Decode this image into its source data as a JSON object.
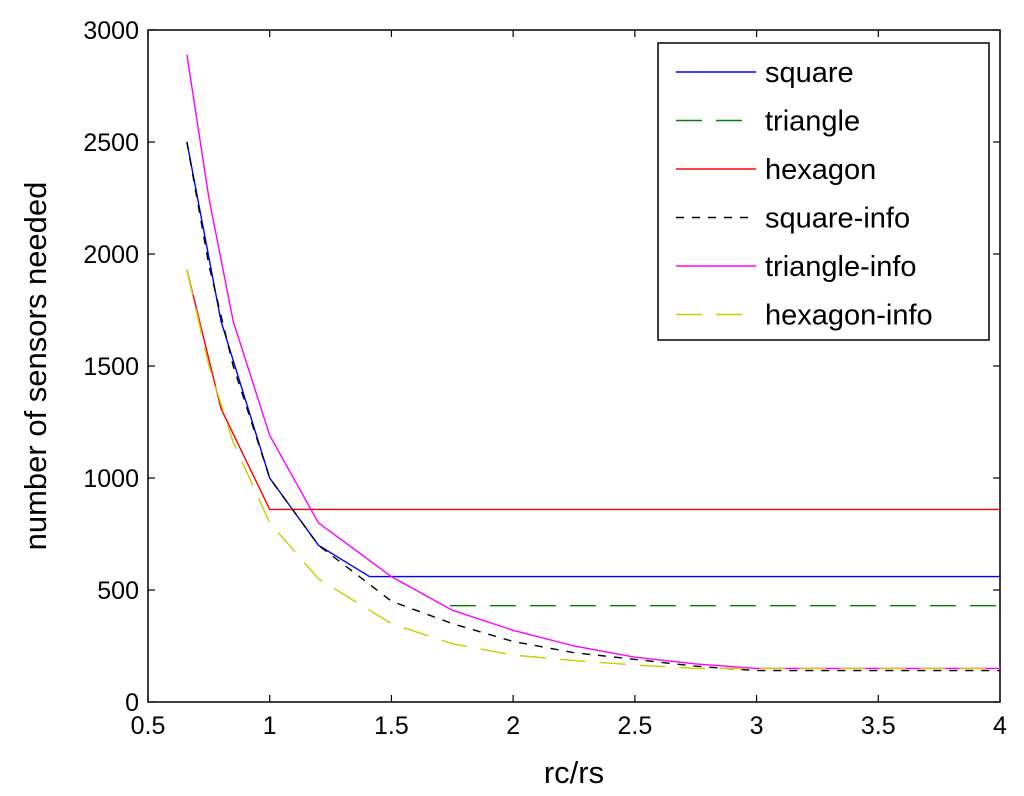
{
  "chart_data": {
    "type": "line",
    "title": "",
    "xlabel": "rc/rs",
    "ylabel": "number of sensors needed",
    "xlim": [
      0.5,
      4
    ],
    "ylim": [
      0,
      3000
    ],
    "xticks": [
      "0.5",
      "1",
      "1.5",
      "2",
      "2.5",
      "3",
      "3.5",
      "4"
    ],
    "yticks": [
      "0",
      "500",
      "1000",
      "1500",
      "2000",
      "2500",
      "3000"
    ],
    "grid": false,
    "legend_position": "top-right",
    "series": [
      {
        "name": "square",
        "color": "#0000ff",
        "style": "solid",
        "x": [
          0.66,
          0.8,
          1.0,
          1.2,
          1.41,
          4.0
        ],
        "y": [
          2500,
          1700,
          1000,
          700,
          560,
          560
        ]
      },
      {
        "name": "triangle",
        "color": "#008000",
        "style": "longdash",
        "x": [
          1.74,
          4.0
        ],
        "y": [
          430,
          430
        ]
      },
      {
        "name": "hexagon",
        "color": "#ff0000",
        "style": "solid",
        "x": [
          0.66,
          0.8,
          1.0,
          4.0
        ],
        "y": [
          1930,
          1310,
          860,
          860
        ]
      },
      {
        "name": "square-info",
        "color": "#000000",
        "style": "dashed",
        "x": [
          0.66,
          0.75,
          0.85,
          1.0,
          1.2,
          1.5,
          1.75,
          2.0,
          2.25,
          2.5,
          2.75,
          3.0,
          3.5,
          4.0
        ],
        "y": [
          2500,
          1950,
          1500,
          1000,
          700,
          450,
          350,
          270,
          220,
          190,
          160,
          140,
          140,
          140
        ]
      },
      {
        "name": "triangle-info",
        "color": "#ff00ff",
        "style": "solid",
        "x": [
          0.66,
          0.75,
          0.85,
          1.0,
          1.2,
          1.5,
          1.75,
          2.0,
          2.25,
          2.5,
          2.75,
          3.0,
          3.5,
          4.0
        ],
        "y": [
          2890,
          2250,
          1700,
          1190,
          800,
          560,
          410,
          320,
          250,
          200,
          170,
          150,
          150,
          150
        ]
      },
      {
        "name": "hexagon-info",
        "color": "#cccc00",
        "style": "longdash",
        "x": [
          0.66,
          0.75,
          0.85,
          1.0,
          1.2,
          1.5,
          1.75,
          2.0,
          2.25,
          2.5,
          2.75,
          3.0,
          3.5,
          4.0
        ],
        "y": [
          1930,
          1500,
          1160,
          800,
          550,
          350,
          260,
          210,
          185,
          165,
          150,
          150,
          150,
          150
        ]
      }
    ]
  }
}
